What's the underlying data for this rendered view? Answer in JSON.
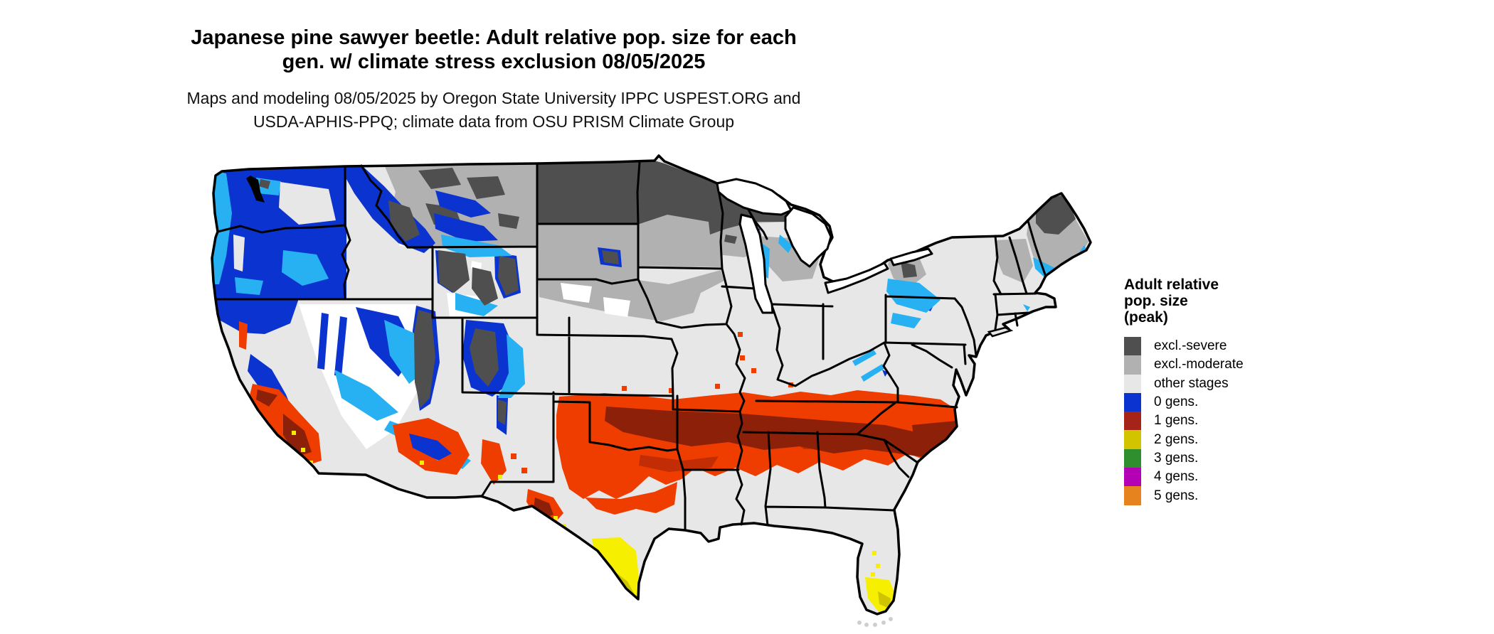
{
  "title": {
    "line1": "Japanese pine sawyer beetle: Adult relative pop. size for each",
    "line2": "gen. w/ climate stress exclusion 08/05/2025"
  },
  "subtitle": {
    "line1": "Maps and modeling 08/05/2025 by Oregon State University IPPC USPEST.ORG and",
    "line2": "USDA-APHIS-PPQ; climate data from OSU PRISM Climate Group"
  },
  "legend": {
    "title_line1": "Adult relative",
    "title_line2": "pop. size",
    "title_line3": "(peak)",
    "items": [
      {
        "label": "excl.-severe",
        "color": "#4f4f4f"
      },
      {
        "label": "excl.-moderate",
        "color": "#b1b1b1"
      },
      {
        "label": "other stages",
        "color": "#e7e7e7"
      },
      {
        "label": "0 gens.",
        "color": "#0b33cf"
      },
      {
        "label": "1 gens.",
        "color": "#a62417"
      },
      {
        "label": "2 gens.",
        "color": "#d3c400"
      },
      {
        "label": "3 gens.",
        "color": "#2f8f2f"
      },
      {
        "label": "4 gens.",
        "color": "#b501b5"
      },
      {
        "label": "5 gens.",
        "color": "#e6831f"
      }
    ]
  },
  "map": {
    "region": "Contiguous United States",
    "colors": {
      "land": "#e7e7e7",
      "severe": "#4f4f4f",
      "moderate": "#b1b1b1",
      "blue": "#0b33cf",
      "cyan": "#27b1f2",
      "red_bright": "#ef3d00",
      "red_mid": "#c22d05",
      "red_dark": "#8d2008",
      "yellow": "#f7ef00",
      "gold": "#cec400",
      "white": "#ffffff",
      "border": "#000000"
    }
  }
}
